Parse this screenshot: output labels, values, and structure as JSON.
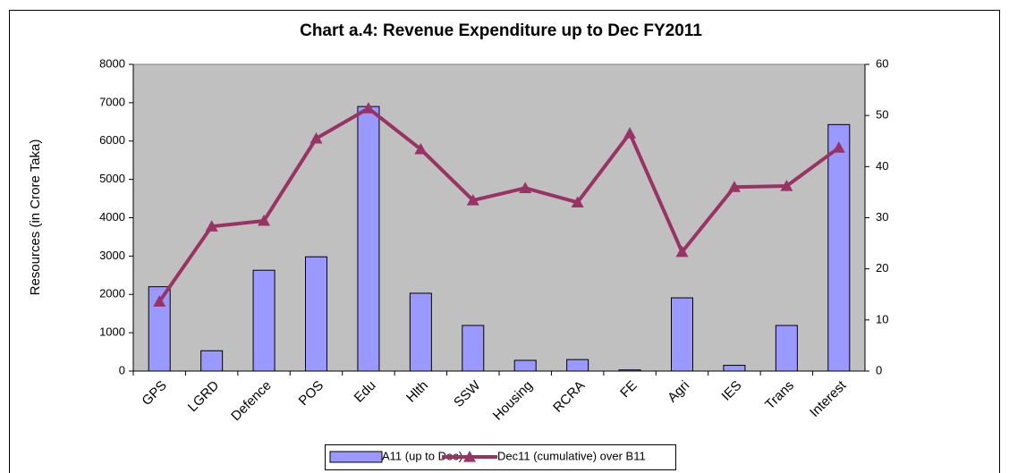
{
  "chart_data": {
    "type": "bar",
    "title": "Chart a.4: Revenue Expenditure up to Dec FY2011",
    "y_label": "Resources (in Crore Taka)",
    "categories": [
      "GPS",
      "LGRD",
      "Defence",
      "POS",
      "Edu",
      "Hlth",
      "SSW",
      "Housing",
      "RCRA",
      "FE",
      "Agri",
      "IES",
      "Trans",
      "Interest"
    ],
    "series": [
      {
        "name": "A11 (up to Dec)",
        "type": "bar",
        "color": "#9999ff",
        "values": [
          2200,
          530,
          2630,
          2980,
          6900,
          2030,
          1190,
          280,
          300,
          30,
          1910,
          150,
          1190,
          6430
        ]
      },
      {
        "name": "Dec11 (cumulative) over B11",
        "type": "line",
        "axis": "y2",
        "color": "#993366",
        "values": [
          13.6,
          28.3,
          29.4,
          45.5,
          51.4,
          43.4,
          33.4,
          35.8,
          33.0,
          46.5,
          23.3,
          36.0,
          36.2,
          43.7
        ]
      }
    ],
    "ylim": [
      0,
      8000
    ],
    "yticks": [
      0,
      1000,
      2000,
      3000,
      4000,
      5000,
      6000,
      7000,
      8000
    ],
    "y2lim": [
      0,
      60
    ],
    "y2ticks": [
      0,
      10,
      20,
      30,
      40,
      50,
      60
    ],
    "legend": "bottom",
    "plot_background": "#c0c0c0"
  }
}
